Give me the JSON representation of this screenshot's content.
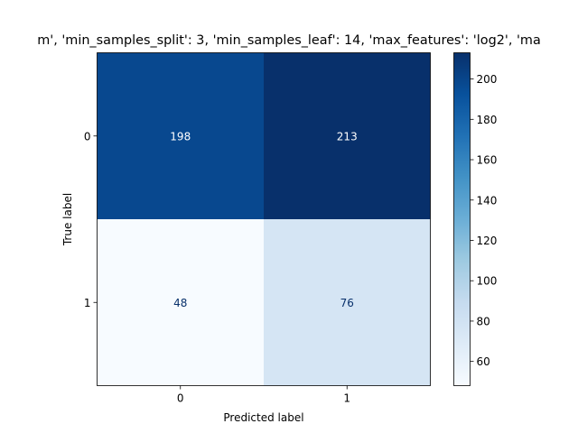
{
  "chart_data": {
    "type": "heatmap",
    "title": "m', 'min_samples_split': 3, 'min_samples_leaf': 14, 'max_features': 'log2', 'ma",
    "xlabel": "Predicted label",
    "ylabel": "True label",
    "x_categories": [
      "0",
      "1"
    ],
    "y_categories": [
      "0",
      "1"
    ],
    "matrix": [
      [
        198,
        213
      ],
      [
        48,
        76
      ]
    ],
    "colormap": "Blues",
    "colorbar": {
      "range": [
        48,
        213
      ],
      "ticks": [
        60,
        80,
        100,
        120,
        140,
        160,
        180,
        200
      ],
      "tick_labels": [
        "60",
        "80",
        "100",
        "120",
        "140",
        "160",
        "180",
        "200"
      ]
    },
    "text_colors": {
      "on_dark": "#ffffff",
      "on_light": "#08306b"
    },
    "colormap_stops": [
      "#f7fbff",
      "#deebf7",
      "#c6dbef",
      "#9ecae1",
      "#6baed6",
      "#4292c6",
      "#2171b5",
      "#08519c",
      "#08306b"
    ]
  }
}
